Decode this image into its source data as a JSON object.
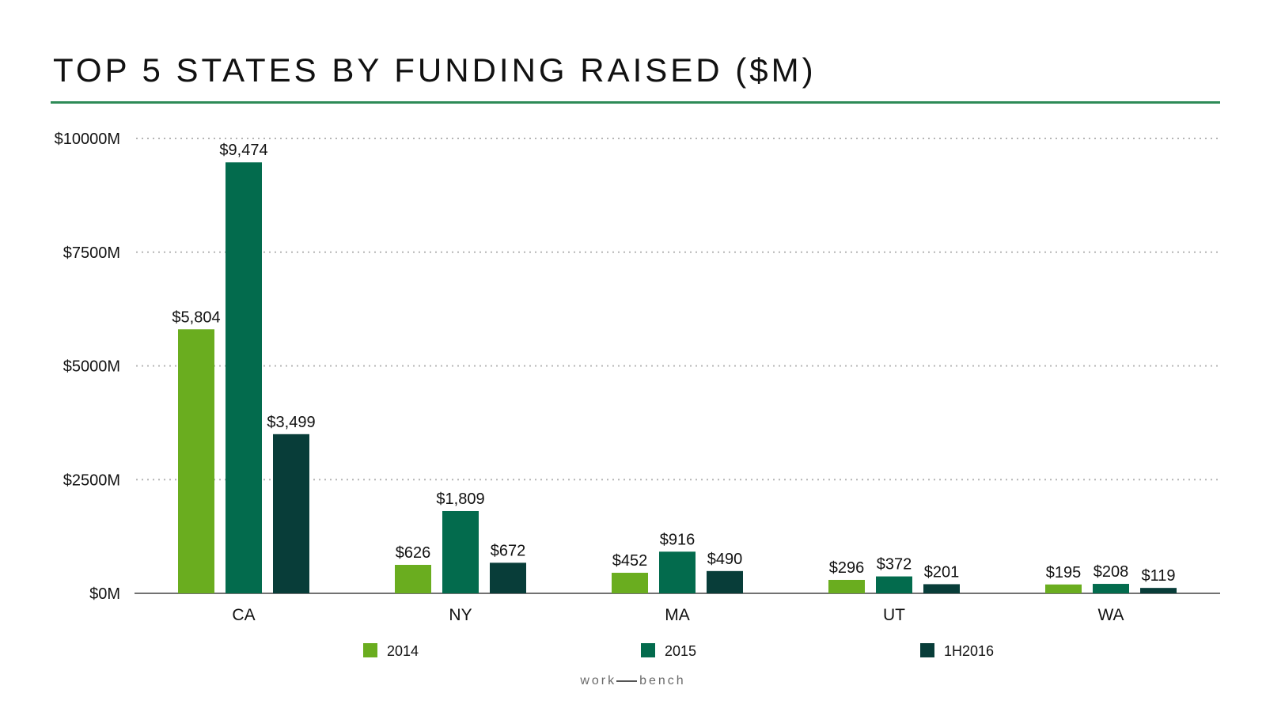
{
  "colors": {
    "title_rule": "#2e8b57",
    "grid": "#b5b5b5",
    "axis": "#444444",
    "text": "#111111"
  },
  "chart_data": {
    "type": "bar",
    "title": "TOP 5 STATES BY FUNDING RAISED ($M)",
    "categories": [
      "CA",
      "NY",
      "MA",
      "UT",
      "WA"
    ],
    "series": [
      {
        "name": "2014",
        "color": "#6aad1f",
        "values": [
          5804,
          626,
          452,
          296,
          195
        ],
        "labels": [
          "$5,804",
          "$626",
          "$452",
          "$296",
          "$195"
        ]
      },
      {
        "name": "2015",
        "color": "#036b4d",
        "values": [
          9474,
          1809,
          916,
          372,
          208
        ],
        "labels": [
          "$9,474",
          "$1,809",
          "$916",
          "$372",
          "$208"
        ]
      },
      {
        "name": "1H2016",
        "color": "#083d39",
        "values": [
          3499,
          672,
          490,
          201,
          119
        ],
        "labels": [
          "$3,499",
          "$672",
          "$490",
          "$201",
          "$119"
        ]
      }
    ],
    "ylim": [
      0,
      10000
    ],
    "yticks": [
      {
        "value": 0,
        "label": "$0M"
      },
      {
        "value": 2500,
        "label": "$2500M"
      },
      {
        "value": 5000,
        "label": "$5000M"
      },
      {
        "value": 7500,
        "label": "$7500M"
      },
      {
        "value": 10000,
        "label": "$10000M"
      }
    ],
    "grid": true,
    "legend_position": "bottom",
    "xlabel": "",
    "ylabel": ""
  },
  "branding": {
    "left": "work",
    "right": "bench"
  }
}
